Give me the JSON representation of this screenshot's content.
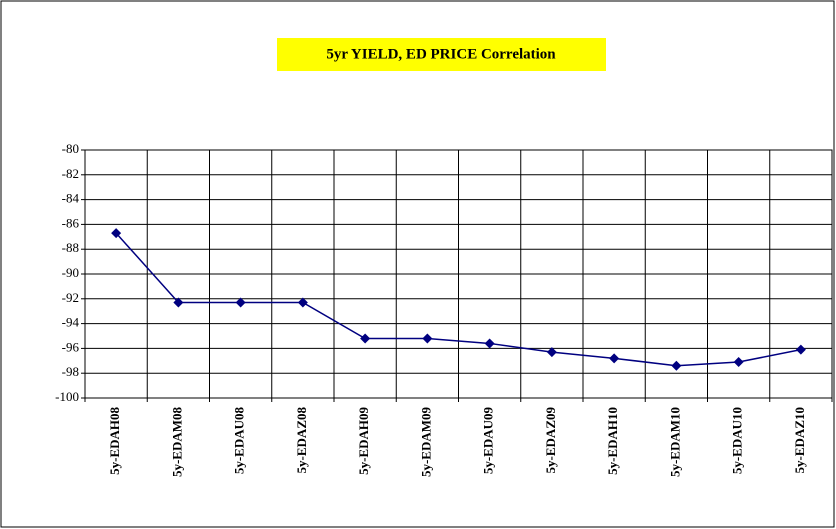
{
  "chart_data": {
    "type": "line",
    "title": "5yr YIELD, ED PRICE Correlation",
    "categories": [
      "5y-EDAH08",
      "5y-EDAM08",
      "5y-EDAU08",
      "5y-EDAZ08",
      "5y-EDAH09",
      "5y-EDAM09",
      "5y-EDAU09",
      "5y-EDAZ09",
      "5y-EDAH10",
      "5y-EDAM10",
      "5y-EDAU10",
      "5y-EDAZ10"
    ],
    "series": [
      {
        "name": "5yr YIELD, ED PRICE Correlation",
        "color": "#000080",
        "values": [
          -86.7,
          -92.3,
          -92.3,
          -92.3,
          -95.2,
          -95.2,
          -95.6,
          -96.3,
          -96.8,
          -97.4,
          -97.1,
          -96.1
        ]
      }
    ],
    "ylim": [
      -100,
      -80
    ],
    "yticks": [
      -100,
      -98,
      -96,
      -94,
      -92,
      -90,
      -88,
      -86,
      -84,
      -82,
      -80
    ],
    "grid": true,
    "legend": false
  }
}
